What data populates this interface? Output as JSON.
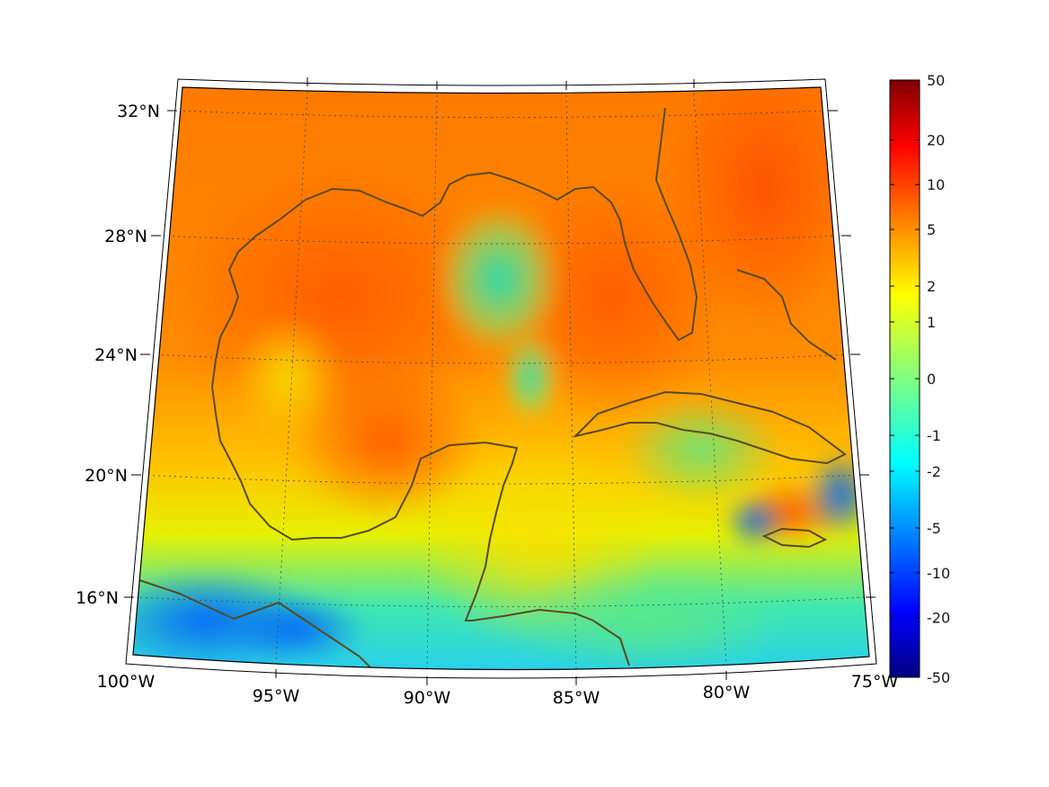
{
  "map": {
    "projection": "conic",
    "extent": {
      "lon": [
        -100,
        -75
      ],
      "lat": [
        14,
        33
      ]
    },
    "parallels_shown": [
      16,
      20,
      24,
      28,
      32
    ],
    "meridians_shown": [
      -100,
      -95,
      -90,
      -85,
      -80,
      -75
    ],
    "graticule": "dotted",
    "frame": "black-white tick border",
    "coastline_color": "#5a4a1e",
    "lat_labels": [
      "32°N",
      "28°N",
      "24°N",
      "20°N",
      "16°N"
    ],
    "lon_labels": [
      "100°W",
      "95°W",
      "90°W",
      "85°W",
      "80°W",
      "75°W"
    ],
    "field": {
      "kind": "gridded scalar",
      "dominant_colors": {
        "open_gulf": "#ff6a00",
        "loop_current_band": "#00e8a8",
        "yucatan_caribbean": "#f2d800",
        "southwest_pacific_side": "#0aa0ff"
      }
    }
  },
  "colorbar": {
    "colormap": "jet",
    "scale": "nonlinear (symmetric log-like)",
    "ticks": [
      "50",
      "20",
      "10",
      "5",
      "2",
      "1",
      "0",
      "-1",
      "-2",
      "-5",
      "-10",
      "-20",
      "-50"
    ],
    "tick_values": [
      50,
      20,
      10,
      5,
      2,
      1,
      0,
      -1,
      -2,
      -5,
      -10,
      -20,
      -50
    ],
    "tick_fractions": [
      0.0,
      0.1,
      0.175,
      0.25,
      0.345,
      0.405,
      0.5,
      0.595,
      0.655,
      0.75,
      0.825,
      0.9,
      1.0
    ],
    "range": [
      -50,
      50
    ],
    "orientation": "vertical",
    "placement": "right"
  }
}
